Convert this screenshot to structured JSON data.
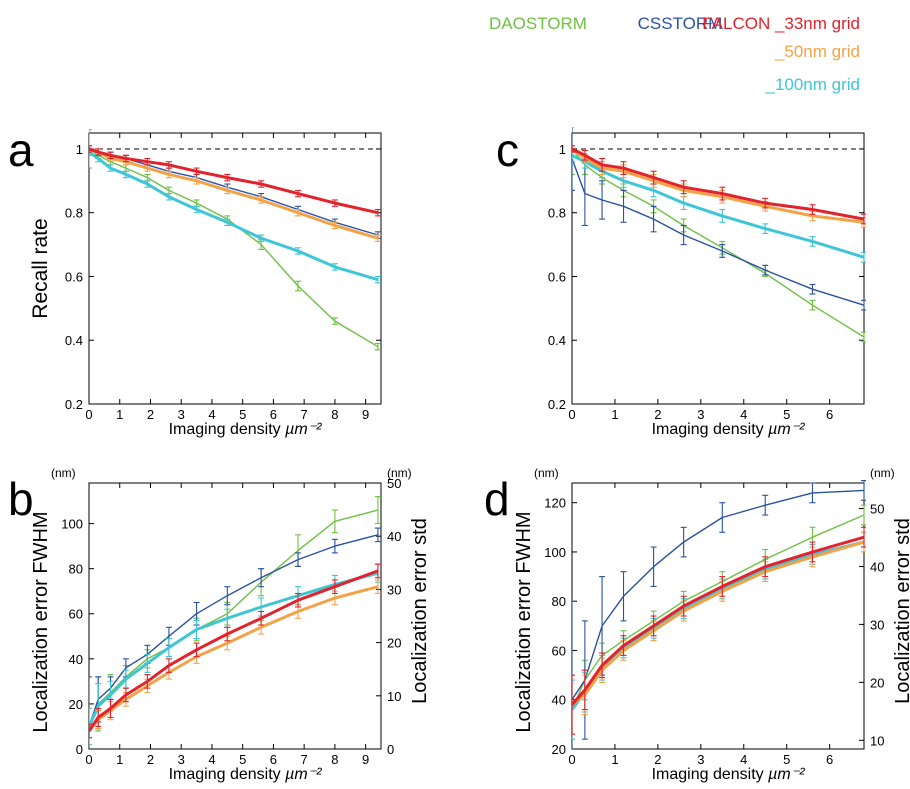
{
  "legend": {
    "daostorm": "DAOSTORM",
    "csstorm": "CSSTORM",
    "falcon33": "FALCON _33nm grid",
    "falcon50": "_50nm grid",
    "falcon100": "_100nm grid"
  },
  "colors": {
    "DAOSTORM": "#6fc043",
    "CSSTORM": "#2a52a3",
    "FALCON _33nm grid": "#e3222b",
    "_50nm grid": "#f4a248",
    "_100nm grid": "#3ec6d6"
  },
  "chart_data": [
    {
      "panel": "a",
      "type": "line",
      "xlabel": "Imaging density",
      "xunit": "µm⁻²",
      "ylabel": "Recall rate",
      "xlim": [
        0,
        9.5
      ],
      "ylim": [
        0.2,
        1.05
      ],
      "xticks": [
        0,
        1,
        2,
        3,
        4,
        5,
        6,
        7,
        8,
        9
      ],
      "yticks": [
        0.2,
        0.4,
        0.6,
        0.8,
        1
      ],
      "reference_line": 1,
      "x": [
        0,
        0.3,
        0.7,
        1.2,
        1.9,
        2.6,
        3.5,
        4.5,
        5.6,
        6.8,
        8.0,
        9.4
      ],
      "series": [
        {
          "name": "DAOSTORM",
          "values": [
            1.0,
            0.98,
            0.96,
            0.94,
            0.91,
            0.87,
            0.83,
            0.78,
            0.7,
            0.57,
            0.46,
            0.38
          ],
          "err": [
            0.06,
            0.01,
            0.01,
            0.01,
            0.01,
            0.01,
            0.01,
            0.01,
            0.015,
            0.015,
            0.01,
            0.01
          ]
        },
        {
          "name": "CSSTORM",
          "values": [
            1.0,
            0.99,
            0.98,
            0.97,
            0.95,
            0.93,
            0.91,
            0.88,
            0.85,
            0.81,
            0.77,
            0.73
          ],
          "err": [
            0.01,
            0.01,
            0.01,
            0.01,
            0.01,
            0.01,
            0.01,
            0.01,
            0.01,
            0.01,
            0.01,
            0.01
          ]
        },
        {
          "name": "FALCON _33nm grid",
          "values": [
            1.0,
            0.99,
            0.98,
            0.97,
            0.96,
            0.95,
            0.93,
            0.91,
            0.89,
            0.86,
            0.83,
            0.8
          ],
          "err": [
            0.01,
            0.01,
            0.01,
            0.01,
            0.01,
            0.01,
            0.01,
            0.01,
            0.01,
            0.01,
            0.01,
            0.01
          ]
        },
        {
          "name": "_50nm grid",
          "values": [
            1.0,
            0.99,
            0.97,
            0.96,
            0.94,
            0.92,
            0.9,
            0.87,
            0.84,
            0.8,
            0.76,
            0.72
          ],
          "err": [
            0.01,
            0.01,
            0.01,
            0.01,
            0.01,
            0.01,
            0.01,
            0.01,
            0.01,
            0.01,
            0.01,
            0.01
          ]
        },
        {
          "name": "_100nm grid",
          "values": [
            0.99,
            0.97,
            0.94,
            0.92,
            0.89,
            0.85,
            0.81,
            0.77,
            0.72,
            0.68,
            0.63,
            0.59
          ],
          "err": [
            0.01,
            0.01,
            0.01,
            0.01,
            0.01,
            0.01,
            0.01,
            0.01,
            0.01,
            0.01,
            0.01,
            0.01
          ]
        }
      ]
    },
    {
      "panel": "b",
      "type": "line",
      "xlabel": "Imaging density",
      "xunit": "µm⁻²",
      "ylabel": "Localization error FWHM",
      "yunit": "(nm)",
      "ylabel_right": "Localization error std",
      "yunit_right": "(nm)",
      "xlim": [
        0,
        9.5
      ],
      "ylim": [
        0,
        118
      ],
      "ylim_right": [
        0,
        50
      ],
      "xticks": [
        0,
        1,
        2,
        3,
        4,
        5,
        6,
        7,
        8,
        9
      ],
      "yticks": [
        0,
        20,
        40,
        60,
        80,
        100
      ],
      "yticks_right": [
        0,
        10,
        20,
        30,
        40,
        50
      ],
      "x": [
        0,
        0.3,
        0.7,
        1.2,
        1.9,
        2.6,
        3.5,
        4.5,
        5.6,
        6.8,
        8.0,
        9.4
      ],
      "series": [
        {
          "name": "DAOSTORM",
          "values": [
            10,
            20,
            25,
            32,
            40,
            45,
            53,
            60,
            74,
            88,
            101,
            106
          ],
          "err": [
            8,
            12,
            8,
            5,
            4,
            4,
            5,
            5,
            6,
            7,
            5,
            6
          ]
        },
        {
          "name": "CSSTORM",
          "values": [
            10,
            22,
            27,
            36,
            42,
            50,
            60,
            68,
            76,
            84,
            90,
            95
          ],
          "err": [
            22,
            10,
            5,
            4,
            4,
            4,
            5,
            4,
            4,
            3,
            3,
            3
          ]
        },
        {
          "name": "FALCON _33nm grid",
          "values": [
            8,
            14,
            18,
            24,
            30,
            37,
            44,
            51,
            58,
            66,
            72,
            79
          ],
          "err": [
            3,
            4,
            4,
            3,
            3,
            3,
            3,
            3,
            3,
            3,
            3,
            3
          ]
        },
        {
          "name": "_50nm grid",
          "values": [
            8,
            13,
            17,
            22,
            28,
            34,
            41,
            47,
            54,
            61,
            67,
            72
          ],
          "err": [
            3,
            4,
            4,
            3,
            3,
            3,
            3,
            3,
            3,
            3,
            3,
            3
          ]
        },
        {
          "name": "_100nm grid",
          "values": [
            10,
            19,
            24,
            31,
            38,
            45,
            53,
            58,
            63,
            68,
            73,
            78
          ],
          "err": [
            8,
            10,
            6,
            4,
            4,
            4,
            4,
            4,
            4,
            4,
            4,
            4
          ]
        }
      ]
    },
    {
      "panel": "c",
      "type": "line",
      "xlabel": "Imaging density",
      "xunit": "µm⁻²",
      "ylabel": "",
      "xlim": [
        0,
        6.8
      ],
      "ylim": [
        0.2,
        1.05
      ],
      "xticks": [
        0,
        1,
        2,
        3,
        4,
        5,
        6
      ],
      "yticks": [
        0.2,
        0.4,
        0.6,
        0.8,
        1
      ],
      "reference_line": 1,
      "x": [
        0,
        0.3,
        0.7,
        1.2,
        1.9,
        2.6,
        3.5,
        4.5,
        5.6,
        6.8
      ],
      "series": [
        {
          "name": "DAOSTORM",
          "values": [
            1.0,
            0.95,
            0.91,
            0.87,
            0.82,
            0.76,
            0.69,
            0.61,
            0.51,
            0.41
          ],
          "err": [
            0.08,
            0.03,
            0.02,
            0.02,
            0.02,
            0.02,
            0.02,
            0.01,
            0.015,
            0.015
          ]
        },
        {
          "name": "CSSTORM",
          "values": [
            0.97,
            0.86,
            0.84,
            0.82,
            0.78,
            0.73,
            0.68,
            0.62,
            0.56,
            0.51
          ],
          "err": [
            0.1,
            0.1,
            0.06,
            0.05,
            0.04,
            0.03,
            0.02,
            0.015,
            0.015,
            0.015
          ]
        },
        {
          "name": "FALCON _33nm grid",
          "values": [
            1.0,
            0.98,
            0.95,
            0.94,
            0.91,
            0.88,
            0.86,
            0.83,
            0.81,
            0.78
          ],
          "err": [
            0.01,
            0.015,
            0.02,
            0.02,
            0.02,
            0.02,
            0.02,
            0.015,
            0.015,
            0.015
          ]
        },
        {
          "name": "_50nm grid",
          "values": [
            1.0,
            0.97,
            0.94,
            0.93,
            0.9,
            0.87,
            0.85,
            0.82,
            0.79,
            0.77
          ],
          "err": [
            0.01,
            0.015,
            0.02,
            0.02,
            0.02,
            0.02,
            0.02,
            0.015,
            0.015,
            0.015
          ]
        },
        {
          "name": "_100nm grid",
          "values": [
            0.98,
            0.96,
            0.93,
            0.9,
            0.87,
            0.83,
            0.79,
            0.75,
            0.71,
            0.66
          ],
          "err": [
            0.02,
            0.02,
            0.02,
            0.02,
            0.02,
            0.02,
            0.02,
            0.015,
            0.015,
            0.015
          ]
        }
      ]
    },
    {
      "panel": "d",
      "type": "line",
      "xlabel": "Imaging density",
      "xunit": "µm⁻²",
      "ylabel": "Localization error FWHM",
      "yunit": "(nm)",
      "ylabel_right": "Localization error std",
      "yunit_right": "(nm)",
      "xlim": [
        0,
        6.8
      ],
      "ylim": [
        20,
        128
      ],
      "ylim_right": [
        8.5,
        54.4
      ],
      "xticks": [
        0,
        1,
        2,
        3,
        4,
        5,
        6
      ],
      "yticks": [
        20,
        40,
        60,
        80,
        100,
        120
      ],
      "yticks_right": [
        10,
        20,
        30,
        40,
        50
      ],
      "x": [
        0,
        0.3,
        0.7,
        1.2,
        1.9,
        2.6,
        3.5,
        4.5,
        5.6,
        6.8
      ],
      "series": [
        {
          "name": "DAOSTORM",
          "values": [
            36,
            48,
            58,
            64,
            72,
            80,
            88,
            97,
            106,
            115
          ],
          "err": [
            12,
            8,
            5,
            4,
            4,
            4,
            4,
            4,
            4,
            4
          ]
        },
        {
          "name": "CSSTORM",
          "values": [
            40,
            48,
            70,
            82,
            94,
            104,
            114,
            119,
            124,
            125
          ],
          "err": [
            40,
            24,
            20,
            10,
            8,
            6,
            6,
            4,
            4,
            4
          ]
        },
        {
          "name": "FALCON _33nm grid",
          "values": [
            38,
            44,
            54,
            62,
            70,
            78,
            86,
            94,
            100,
            106
          ],
          "err": [
            12,
            8,
            5,
            4,
            4,
            4,
            4,
            4,
            4,
            4
          ]
        },
        {
          "name": "_50nm grid",
          "values": [
            38,
            42,
            52,
            60,
            68,
            76,
            84,
            92,
            98,
            104
          ],
          "err": [
            12,
            8,
            5,
            4,
            4,
            4,
            4,
            4,
            4,
            4
          ]
        },
        {
          "name": "_100nm grid",
          "values": [
            36,
            43,
            53,
            61,
            69,
            77,
            85,
            93,
            99,
            104
          ],
          "err": [
            12,
            8,
            5,
            4,
            4,
            4,
            4,
            4,
            4,
            4
          ]
        }
      ]
    }
  ]
}
